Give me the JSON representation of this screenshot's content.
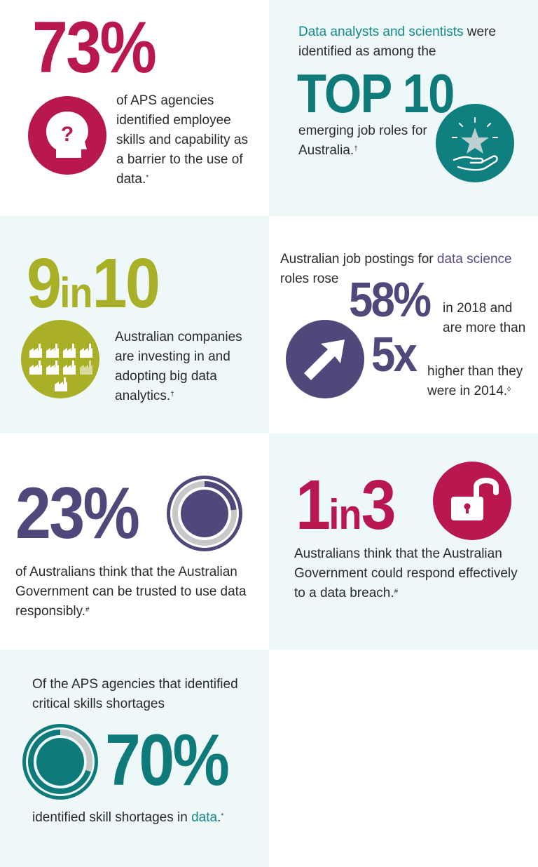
{
  "colors": {
    "crimson": "#b8174f",
    "teal": "#0e7a79",
    "olive": "#a9b027",
    "purple": "#52477a",
    "panel_light": "#eef8f8"
  },
  "block1": {
    "stat": "73%",
    "icon": "head-question-icon",
    "text": "of APS agencies identified employee skills and capability as a barrier to the use of data.",
    "note": "*"
  },
  "block2": {
    "lead_highlight": "Data analysts and scientists",
    "lead_rest": " were identified as among the",
    "stat": "TOP 10",
    "text": "emerging job roles for Australia.",
    "note": "†",
    "icon": "hand-star-icon"
  },
  "block3": {
    "stat_num": "9",
    "stat_in": "in",
    "stat_den": "10",
    "icon": "factories-icon",
    "text": "Australian companies are investing in and adopting big data analytics.",
    "note": "†"
  },
  "block4": {
    "lead_start": "Australian job postings for ",
    "lead_highlight": "data science",
    "lead_end": " roles rose",
    "pct": "58%",
    "pct_text": "in 2018 and are more than",
    "icon": "arrow-up-icon",
    "multiplier": "5x",
    "mult_text": "higher than they were in 2014.",
    "note": "◊",
    "growth_pct": 58,
    "multiple": 5
  },
  "block5": {
    "stat": "23%",
    "ring_value": 0.23,
    "text": "of Australians think that the Australian Government can be trusted to use data responsibly.",
    "note": "#"
  },
  "block6": {
    "stat_num": "1",
    "stat_in": "in",
    "stat_den": "3",
    "icon": "padlock-open-icon",
    "text": "Australians think that the Australian Government could respond effectively to a data breach.",
    "note": "#"
  },
  "block7": {
    "lead": "Of the APS agencies that identified critical skills shortages",
    "stat": "70%",
    "ring_value": 0.7,
    "text_start": "identified skill shortages in ",
    "text_highlight": "data",
    "text_end": ".",
    "note": "*"
  }
}
